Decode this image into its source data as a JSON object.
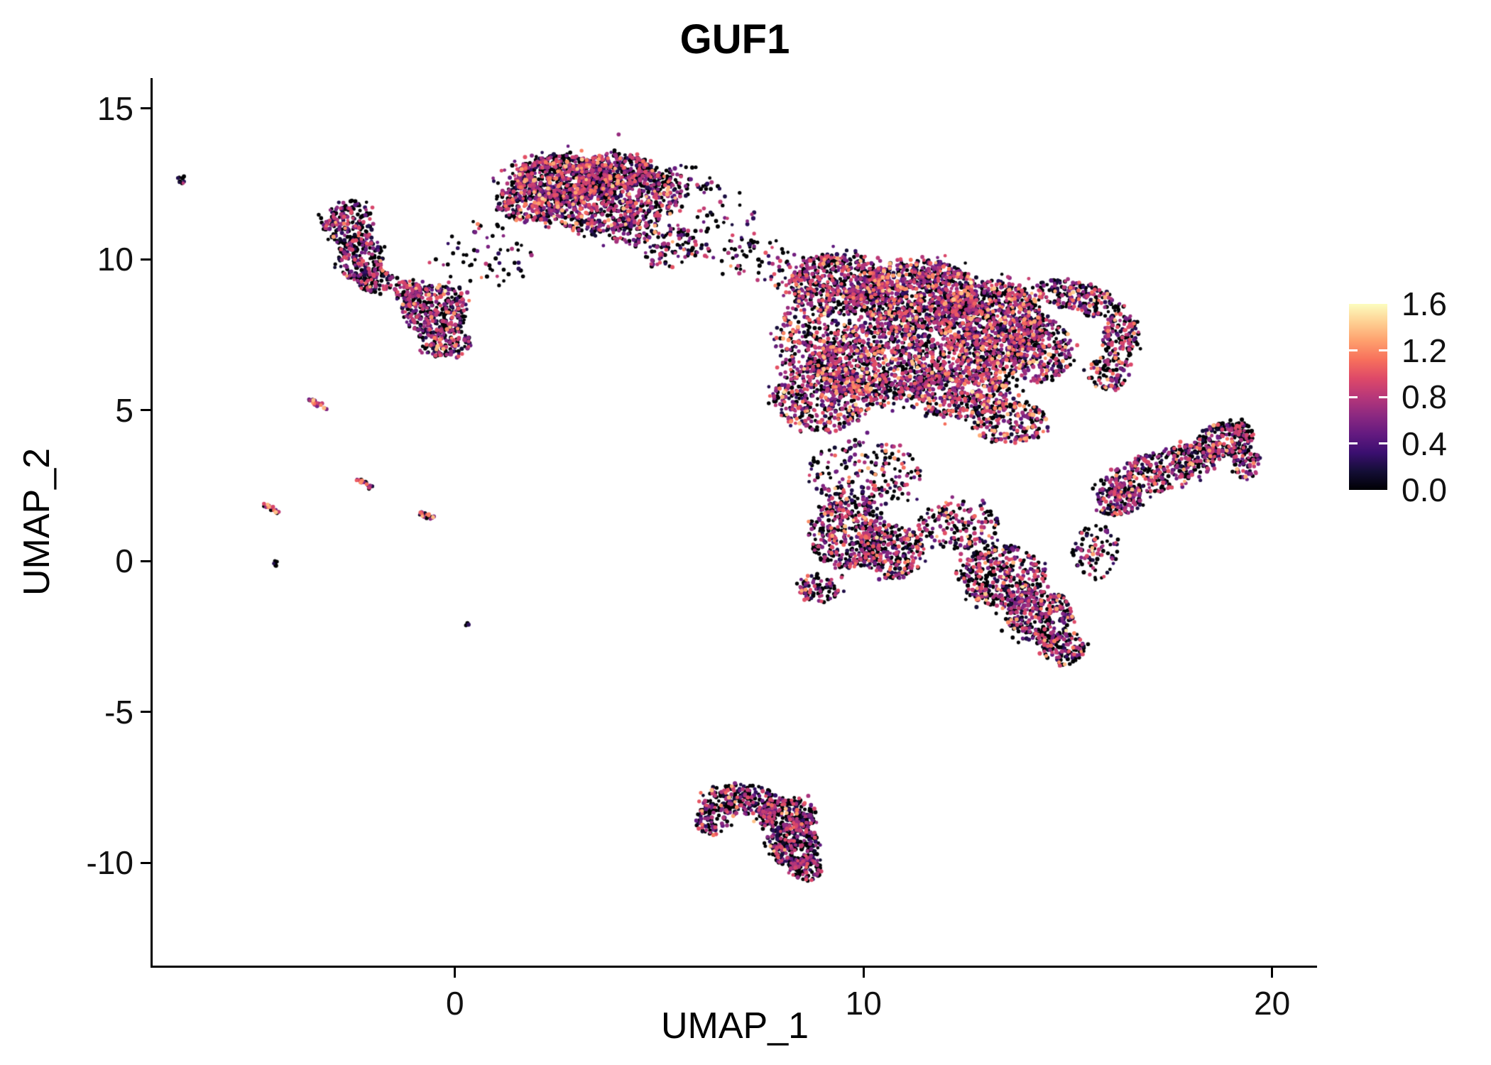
{
  "chart_data": {
    "type": "scatter",
    "title": "GUF1",
    "xlabel": "UMAP_1",
    "ylabel": "UMAP_2",
    "xlim": [
      -7.4,
      21.1
    ],
    "ylim": [
      -13.4,
      16.0
    ],
    "grid": false,
    "background": "#ffffff",
    "axis_color": "#000000",
    "text_color": "#111111",
    "point_radius": 2.7,
    "xticks": [
      {
        "v": 0,
        "label": "0"
      },
      {
        "v": 10,
        "label": "10"
      },
      {
        "v": 20,
        "label": "20"
      }
    ],
    "yticks": [
      {
        "v": 15,
        "label": "15"
      },
      {
        "v": 10,
        "label": "10"
      },
      {
        "v": 5,
        "label": "5"
      },
      {
        "v": 0,
        "label": "0"
      },
      {
        "v": -5,
        "label": "-5"
      },
      {
        "v": -10,
        "label": "-10"
      }
    ],
    "legend": {
      "position": "right",
      "range": [
        0,
        1.6
      ],
      "colormap": "magma",
      "ticks": [
        {
          "v": 1.6,
          "label": "1.6"
        },
        {
          "v": 1.2,
          "label": "1.2"
        },
        {
          "v": 0.8,
          "label": "0.8"
        },
        {
          "v": 0.4,
          "label": "0.4"
        },
        {
          "v": 0.0,
          "label": "0.0"
        }
      ],
      "stops": [
        {
          "t": 0.0,
          "c": "#000004"
        },
        {
          "t": 0.1,
          "c": "#140e36"
        },
        {
          "t": 0.2,
          "c": "#3b0f70"
        },
        {
          "t": 0.3,
          "c": "#641a80"
        },
        {
          "t": 0.4,
          "c": "#8c2981"
        },
        {
          "t": 0.5,
          "c": "#b73779"
        },
        {
          "t": 0.6,
          "c": "#de4968"
        },
        {
          "t": 0.7,
          "c": "#f7705c"
        },
        {
          "t": 0.8,
          "c": "#fe9f6d"
        },
        {
          "t": 0.9,
          "c": "#fecf92"
        },
        {
          "t": 1.0,
          "c": "#fcfdbf"
        }
      ]
    },
    "clusters": [
      {
        "name": "top-left-dots",
        "mix": {
          "zero": 0.85,
          "mid": 0.15,
          "high": 0.0
        },
        "blobs": [
          {
            "x": -6.7,
            "y": 12.6,
            "rx": 0.13,
            "ry": 0.2,
            "n": 9
          }
        ]
      },
      {
        "name": "top-cluster",
        "mix": {
          "zero": 0.52,
          "mid": 0.4,
          "high": 0.08
        },
        "blobs": [
          {
            "x": 2.6,
            "y": 12.7,
            "rx": 1.15,
            "ry": 0.75,
            "n": 650
          },
          {
            "x": 3.9,
            "y": 12.9,
            "rx": 0.95,
            "ry": 0.6,
            "n": 380
          },
          {
            "x": 1.8,
            "y": 11.9,
            "rx": 0.8,
            "ry": 0.65,
            "n": 260
          },
          {
            "x": 3.4,
            "y": 11.6,
            "rx": 1.05,
            "ry": 0.7,
            "n": 330
          },
          {
            "x": 4.8,
            "y": 12.1,
            "rx": 0.65,
            "ry": 0.85,
            "n": 200
          },
          {
            "x": 3.2,
            "y": 12.3,
            "rx": 2.3,
            "ry": 1.5,
            "n": 170
          },
          {
            "x": 5.3,
            "y": 10.4,
            "rx": 0.55,
            "ry": 0.8,
            "rot": -35,
            "n": 90
          },
          {
            "x": 4.4,
            "y": 10.9,
            "rx": 0.6,
            "ry": 0.5,
            "n": 80
          }
        ]
      },
      {
        "name": "left-small-cluster",
        "mix": {
          "zero": 0.62,
          "mid": 0.34,
          "high": 0.04
        },
        "blobs": [
          {
            "x": -2.6,
            "y": 11.2,
            "rx": 0.6,
            "ry": 0.75,
            "n": 200
          },
          {
            "x": -2.3,
            "y": 10.0,
            "rx": 0.55,
            "ry": 0.75,
            "n": 200
          },
          {
            "x": -1.95,
            "y": 9.3,
            "rx": 0.45,
            "ry": 0.4,
            "n": 80
          }
        ]
      },
      {
        "name": "mid-left-cluster",
        "mix": {
          "zero": 0.5,
          "mid": 0.44,
          "high": 0.06
        },
        "blobs": [
          {
            "x": -0.5,
            "y": 8.3,
            "rx": 0.8,
            "ry": 0.85,
            "n": 330
          },
          {
            "x": -0.2,
            "y": 7.2,
            "rx": 0.6,
            "ry": 0.5,
            "n": 130
          },
          {
            "x": -1.1,
            "y": 8.9,
            "rx": 0.4,
            "ry": 0.45,
            "n": 80
          }
        ]
      },
      {
        "name": "sparse-bridges",
        "mix": {
          "zero": 0.72,
          "mid": 0.26,
          "high": 0.02
        },
        "blobs": [
          {
            "x": 0.8,
            "y": 10.2,
            "rx": 1.3,
            "ry": 1.0,
            "n": 60
          },
          {
            "x": 6.3,
            "y": 11.2,
            "rx": 1.1,
            "ry": 1.3,
            "n": 70
          },
          {
            "x": 7.5,
            "y": 9.9,
            "rx": 0.9,
            "ry": 0.9,
            "n": 60
          },
          {
            "x": 5.6,
            "y": 12.6,
            "rx": 0.7,
            "ry": 0.5,
            "n": 40
          }
        ]
      },
      {
        "name": "main-mass",
        "mix": {
          "zero": 0.5,
          "mid": 0.4,
          "high": 0.1
        },
        "blobs": [
          {
            "x": 9.3,
            "y": 9.2,
            "rx": 1.2,
            "ry": 1.0,
            "n": 550
          },
          {
            "x": 11.3,
            "y": 8.8,
            "rx": 1.5,
            "ry": 1.2,
            "n": 900
          },
          {
            "x": 13.1,
            "y": 7.9,
            "rx": 1.3,
            "ry": 1.4,
            "n": 950
          },
          {
            "x": 10.4,
            "y": 6.6,
            "rx": 1.6,
            "ry": 1.3,
            "n": 800
          },
          {
            "x": 12.4,
            "y": 5.7,
            "rx": 1.2,
            "ry": 1.0,
            "n": 500
          },
          {
            "x": 9.0,
            "y": 5.4,
            "rx": 1.2,
            "ry": 1.1,
            "n": 450
          },
          {
            "x": 14.3,
            "y": 7.0,
            "rx": 0.8,
            "ry": 1.1,
            "n": 300
          },
          {
            "x": 11.5,
            "y": 7.2,
            "rx": 3.1,
            "ry": 2.4,
            "n": 450
          },
          {
            "x": 8.6,
            "y": 7.3,
            "rx": 0.8,
            "ry": 1.2,
            "n": 200
          },
          {
            "x": 13.6,
            "y": 4.6,
            "rx": 0.9,
            "ry": 0.7,
            "n": 220
          }
        ]
      },
      {
        "name": "right-hook",
        "mix": {
          "zero": 0.55,
          "mid": 0.38,
          "high": 0.07
        },
        "blobs": [
          {
            "x": 15.3,
            "y": 8.7,
            "rx": 1.15,
            "ry": 0.5,
            "rot": -20,
            "n": 220
          },
          {
            "x": 16.3,
            "y": 7.4,
            "rx": 0.45,
            "ry": 0.85,
            "n": 150
          },
          {
            "x": 16.0,
            "y": 6.2,
            "rx": 0.5,
            "ry": 0.6,
            "n": 90
          }
        ]
      },
      {
        "name": "lower-middle-lobe",
        "mix": {
          "zero": 0.55,
          "mid": 0.38,
          "high": 0.07
        },
        "blobs": [
          {
            "x": 9.6,
            "y": 0.9,
            "rx": 0.95,
            "ry": 1.15,
            "n": 420
          },
          {
            "x": 10.7,
            "y": 0.3,
            "rx": 0.8,
            "ry": 0.9,
            "n": 280
          },
          {
            "x": 10.0,
            "y": 2.9,
            "rx": 1.4,
            "ry": 1.1,
            "n": 220
          },
          {
            "x": 8.9,
            "y": -0.9,
            "rx": 0.5,
            "ry": 0.5,
            "n": 90
          }
        ]
      },
      {
        "name": "lower-right-lobe",
        "mix": {
          "zero": 0.55,
          "mid": 0.38,
          "high": 0.07
        },
        "blobs": [
          {
            "x": 13.4,
            "y": -0.5,
            "rx": 1.05,
            "ry": 1.0,
            "n": 420
          },
          {
            "x": 14.3,
            "y": -1.8,
            "rx": 0.85,
            "ry": 0.9,
            "n": 330
          },
          {
            "x": 14.9,
            "y": -2.9,
            "rx": 0.5,
            "ry": 0.55,
            "n": 130
          },
          {
            "x": 12.3,
            "y": 1.2,
            "rx": 1.0,
            "ry": 0.8,
            "n": 180
          },
          {
            "x": 15.7,
            "y": 0.3,
            "rx": 0.6,
            "ry": 0.9,
            "n": 90
          }
        ]
      },
      {
        "name": "right-elongated-cluster",
        "mix": {
          "zero": 0.55,
          "mid": 0.4,
          "high": 0.05
        },
        "blobs": [
          {
            "x": 17.3,
            "y": 3.0,
            "rx": 1.6,
            "ry": 0.65,
            "rot": 25,
            "n": 420
          },
          {
            "x": 18.8,
            "y": 4.0,
            "rx": 0.8,
            "ry": 0.55,
            "rot": 25,
            "n": 230
          },
          {
            "x": 16.2,
            "y": 2.0,
            "rx": 0.6,
            "ry": 0.5,
            "n": 120
          },
          {
            "x": 19.4,
            "y": 3.2,
            "rx": 0.35,
            "ry": 0.5,
            "n": 70
          }
        ]
      },
      {
        "name": "bottom-cluster",
        "mix": {
          "zero": 0.62,
          "mid": 0.34,
          "high": 0.04
        },
        "blobs": [
          {
            "x": 7.0,
            "y": -7.9,
            "rx": 0.95,
            "ry": 0.5,
            "n": 240
          },
          {
            "x": 8.1,
            "y": -8.4,
            "rx": 0.75,
            "ry": 0.6,
            "n": 260
          },
          {
            "x": 8.3,
            "y": -9.4,
            "rx": 0.6,
            "ry": 0.75,
            "n": 280
          },
          {
            "x": 8.6,
            "y": -10.2,
            "rx": 0.4,
            "ry": 0.4,
            "n": 110
          },
          {
            "x": 6.3,
            "y": -8.6,
            "rx": 0.4,
            "ry": 0.5,
            "n": 80
          }
        ]
      },
      {
        "name": "left-streaks",
        "mix": {
          "zero": 0.3,
          "mid": 0.45,
          "high": 0.25
        },
        "blobs": [
          {
            "x": -3.35,
            "y": 5.2,
            "rx": 0.3,
            "ry": 0.09,
            "rot": -35,
            "n": 26
          },
          {
            "x": -4.5,
            "y": 1.75,
            "rx": 0.26,
            "ry": 0.08,
            "rot": -35,
            "n": 22
          },
          {
            "x": -2.2,
            "y": 2.55,
            "rx": 0.26,
            "ry": 0.08,
            "rot": -35,
            "n": 22
          },
          {
            "x": -0.7,
            "y": 1.5,
            "rx": 0.24,
            "ry": 0.08,
            "rot": -30,
            "n": 20
          }
        ]
      },
      {
        "name": "left-isolated-dots",
        "mix": {
          "zero": 0.85,
          "mid": 0.15,
          "high": 0.0
        },
        "blobs": [
          {
            "x": -4.4,
            "y": -0.1,
            "rx": 0.12,
            "ry": 0.12,
            "n": 7
          },
          {
            "x": 0.3,
            "y": -2.1,
            "rx": 0.06,
            "ry": 0.06,
            "n": 3
          }
        ]
      }
    ]
  }
}
